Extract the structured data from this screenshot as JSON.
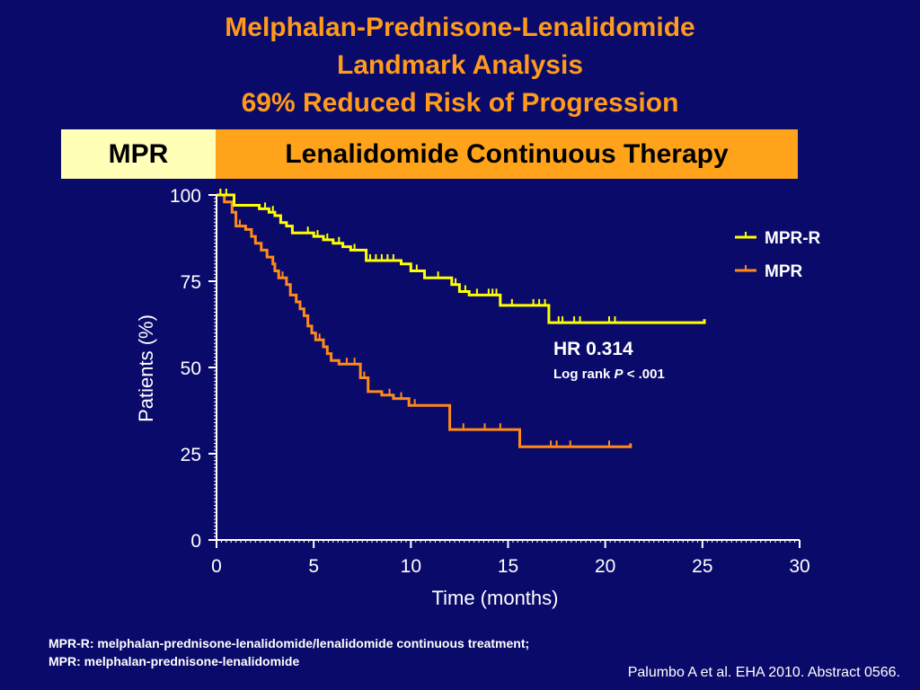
{
  "slide": {
    "title_lines": [
      "Melphalan-Prednisone-Lenalidomide",
      "Landmark Analysis",
      "69% Reduced Risk of Progression"
    ],
    "banner_left": "MPR",
    "banner_right": "Lenalidomide Continuous Therapy",
    "hr_text": "HR 0.314",
    "logrank_prefix": "Log rank ",
    "logrank_p": "P",
    "logrank_suffix": " < .001",
    "footnote_lines": [
      "MPR-R: melphalan-prednisone-lenalidomide/lenalidomide continuous treatment;",
      "MPR: melphalan-prednisone-lenalidomide"
    ],
    "citation": "Palumbo A et al. EHA 2010. Abstract 0566."
  },
  "colors": {
    "background": "#0a0a6b",
    "title": "#ff9a1a",
    "mpr_r": "#ffff00",
    "mpr": "#ff8a1a",
    "axis": "#ffffff"
  },
  "chart_data": {
    "type": "line",
    "title": "",
    "xlabel": "Time (months)",
    "ylabel": "Patients (%)",
    "xlim": [
      0,
      30
    ],
    "ylim": [
      0,
      100
    ],
    "xticks": [
      0,
      5,
      10,
      15,
      20,
      25,
      30
    ],
    "yticks": [
      0,
      25,
      50,
      75,
      100
    ],
    "legend_position": "top-right",
    "series": [
      {
        "name": "MPR-R",
        "color": "#ffff00",
        "points": [
          [
            0,
            100
          ],
          [
            0.9,
            100
          ],
          [
            0.9,
            97
          ],
          [
            2.2,
            97
          ],
          [
            2.2,
            96
          ],
          [
            2.7,
            96
          ],
          [
            2.7,
            95
          ],
          [
            3.0,
            95
          ],
          [
            3.0,
            94
          ],
          [
            3.3,
            94
          ],
          [
            3.3,
            92
          ],
          [
            3.6,
            92
          ],
          [
            3.6,
            91
          ],
          [
            3.9,
            91
          ],
          [
            3.9,
            89
          ],
          [
            5.0,
            89
          ],
          [
            5.0,
            88
          ],
          [
            5.5,
            88
          ],
          [
            5.5,
            87
          ],
          [
            6.0,
            87
          ],
          [
            6.0,
            86
          ],
          [
            6.5,
            86
          ],
          [
            6.5,
            85
          ],
          [
            6.9,
            85
          ],
          [
            6.9,
            84
          ],
          [
            7.7,
            84
          ],
          [
            7.7,
            81
          ],
          [
            9.5,
            81
          ],
          [
            9.5,
            80
          ],
          [
            10.0,
            80
          ],
          [
            10.0,
            78
          ],
          [
            10.7,
            78
          ],
          [
            10.7,
            76
          ],
          [
            12.1,
            76
          ],
          [
            12.1,
            74
          ],
          [
            12.5,
            74
          ],
          [
            12.5,
            72
          ],
          [
            13.0,
            72
          ],
          [
            13.0,
            71
          ],
          [
            14.6,
            71
          ],
          [
            14.6,
            68
          ],
          [
            17.1,
            68
          ],
          [
            17.1,
            63
          ],
          [
            25.1,
            63
          ],
          [
            25.1,
            64
          ]
        ],
        "censor_times": [
          0.2,
          0.5,
          2.5,
          2.9,
          4.7,
          5.2,
          5.7,
          6.3,
          7.1,
          7.9,
          8.2,
          8.5,
          8.8,
          9.1,
          10.3,
          11.4,
          12.3,
          12.8,
          13.4,
          14.0,
          14.2,
          14.4,
          15.2,
          16.3,
          16.6,
          16.9,
          17.6,
          17.8,
          18.4,
          18.7,
          20.2,
          20.5
        ]
      },
      {
        "name": "MPR",
        "color": "#ff8a1a",
        "points": [
          [
            0,
            100
          ],
          [
            0.4,
            100
          ],
          [
            0.4,
            98
          ],
          [
            0.8,
            98
          ],
          [
            0.8,
            95
          ],
          [
            1.0,
            95
          ],
          [
            1.0,
            91
          ],
          [
            1.5,
            91
          ],
          [
            1.5,
            90
          ],
          [
            1.8,
            90
          ],
          [
            1.8,
            88
          ],
          [
            2.0,
            88
          ],
          [
            2.0,
            86
          ],
          [
            2.3,
            86
          ],
          [
            2.3,
            84
          ],
          [
            2.6,
            84
          ],
          [
            2.6,
            82
          ],
          [
            2.9,
            82
          ],
          [
            2.9,
            80
          ],
          [
            3.0,
            80
          ],
          [
            3.0,
            78
          ],
          [
            3.2,
            78
          ],
          [
            3.2,
            76
          ],
          [
            3.6,
            76
          ],
          [
            3.6,
            74
          ],
          [
            3.8,
            74
          ],
          [
            3.8,
            71
          ],
          [
            4.1,
            71
          ],
          [
            4.1,
            69
          ],
          [
            4.3,
            69
          ],
          [
            4.3,
            67
          ],
          [
            4.5,
            67
          ],
          [
            4.5,
            65
          ],
          [
            4.7,
            65
          ],
          [
            4.7,
            62
          ],
          [
            4.9,
            62
          ],
          [
            4.9,
            60
          ],
          [
            5.1,
            60
          ],
          [
            5.1,
            58
          ],
          [
            5.5,
            58
          ],
          [
            5.5,
            56
          ],
          [
            5.7,
            56
          ],
          [
            5.7,
            54
          ],
          [
            5.9,
            54
          ],
          [
            5.9,
            52
          ],
          [
            6.3,
            52
          ],
          [
            6.3,
            51
          ],
          [
            7.4,
            51
          ],
          [
            7.4,
            47
          ],
          [
            7.8,
            47
          ],
          [
            7.8,
            43
          ],
          [
            8.5,
            43
          ],
          [
            8.5,
            42
          ],
          [
            9.1,
            42
          ],
          [
            9.1,
            41
          ],
          [
            9.9,
            41
          ],
          [
            9.9,
            39
          ],
          [
            12.0,
            39
          ],
          [
            12.0,
            32
          ],
          [
            15.6,
            32
          ],
          [
            15.6,
            27
          ],
          [
            21.3,
            27
          ],
          [
            21.3,
            28
          ]
        ],
        "censor_times": [
          0.2,
          1.2,
          3.4,
          5.3,
          6.7,
          7.1,
          7.6,
          8.9,
          9.5,
          10.2,
          12.7,
          13.8,
          14.6,
          17.2,
          17.5,
          18.2,
          20.2
        ]
      }
    ]
  }
}
